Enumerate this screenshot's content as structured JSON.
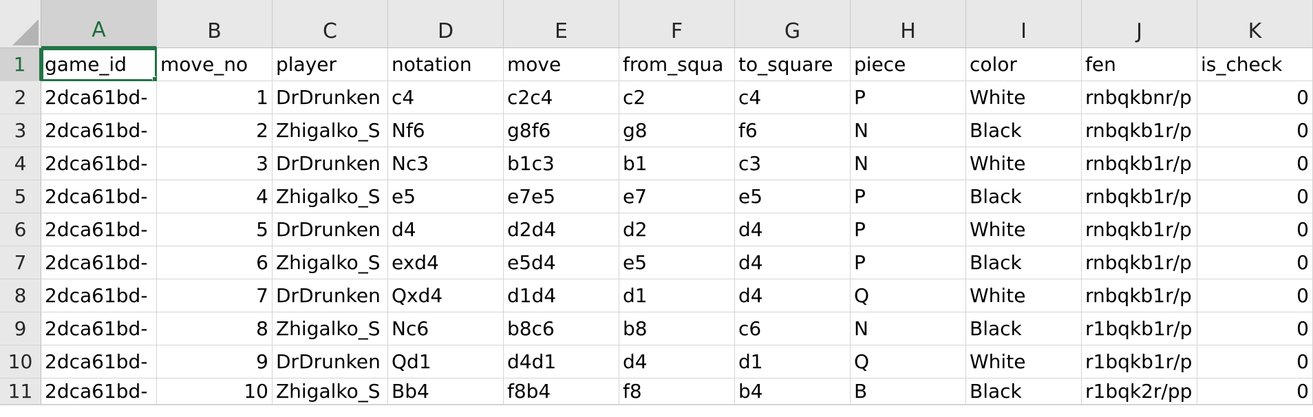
{
  "sheet": {
    "column_headers": [
      "A",
      "B",
      "C",
      "D",
      "E",
      "F",
      "G",
      "H",
      "I",
      "J",
      "K"
    ],
    "row_headers": [
      "1",
      "2",
      "3",
      "4",
      "5",
      "6",
      "7",
      "8",
      "9",
      "10",
      "11"
    ],
    "selected_column": "A",
    "selected_row": "1",
    "field_names": [
      "game_id",
      "move_no",
      "player",
      "notation",
      "move",
      "from_squa",
      "to_square",
      "piece",
      "color",
      "fen",
      "is_check"
    ],
    "rows": [
      [
        "2dca61bd-",
        "1",
        "DrDrunken",
        "c4",
        "c2c4",
        "c2",
        "c4",
        "P",
        "White",
        "rnbqkbnr/p",
        "0"
      ],
      [
        "2dca61bd-",
        "2",
        "Zhigalko_S",
        "Nf6",
        "g8f6",
        "g8",
        "f6",
        "N",
        "Black",
        "rnbqkb1r/p",
        "0"
      ],
      [
        "2dca61bd-",
        "3",
        "DrDrunken",
        "Nc3",
        "b1c3",
        "b1",
        "c3",
        "N",
        "White",
        "rnbqkb1r/p",
        "0"
      ],
      [
        "2dca61bd-",
        "4",
        "Zhigalko_S",
        "e5",
        "e7e5",
        "e7",
        "e5",
        "P",
        "Black",
        "rnbqkb1r/p",
        "0"
      ],
      [
        "2dca61bd-",
        "5",
        "DrDrunken",
        "d4",
        "d2d4",
        "d2",
        "d4",
        "P",
        "White",
        "rnbqkb1r/p",
        "0"
      ],
      [
        "2dca61bd-",
        "6",
        "Zhigalko_S",
        "exd4",
        "e5d4",
        "e5",
        "d4",
        "P",
        "Black",
        "rnbqkb1r/p",
        "0"
      ],
      [
        "2dca61bd-",
        "7",
        "DrDrunken",
        "Qxd4",
        "d1d4",
        "d1",
        "d4",
        "Q",
        "White",
        "rnbqkb1r/p",
        "0"
      ],
      [
        "2dca61bd-",
        "8",
        "Zhigalko_S",
        "Nc6",
        "b8c6",
        "b8",
        "c6",
        "N",
        "Black",
        "r1bqkb1r/p",
        "0"
      ],
      [
        "2dca61bd-",
        "9",
        "DrDrunken",
        "Qd1",
        "d4d1",
        "d4",
        "d1",
        "Q",
        "White",
        "r1bqkb1r/p",
        "0"
      ],
      [
        "2dca61bd-",
        "10",
        "Zhigalko_S",
        "Bb4",
        "f8b4",
        "f8",
        "b4",
        "B",
        "Black",
        "r1bqk2r/pp",
        "0"
      ]
    ],
    "numeric_columns": [
      1,
      10
    ],
    "colors": {
      "header_bg": "#e8e8e8",
      "selected_header_bg": "#d2d2d2",
      "accent": "#217346",
      "gridline": "#d4d4d4"
    }
  }
}
